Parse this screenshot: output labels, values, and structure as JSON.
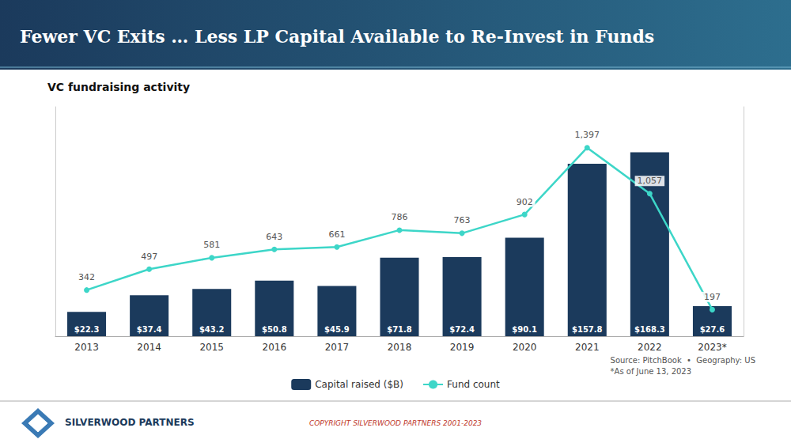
{
  "chart_data": {
    "type": "bar",
    "title": "Fewer VC Exits … Less LP Capital Available to Re-Invest in Funds",
    "subtitle": "VC fundraising activity",
    "categories": [
      "2013",
      "2014",
      "2015",
      "2016",
      "2017",
      "2018",
      "2019",
      "2020",
      "2021",
      "2022",
      "2023*"
    ],
    "series": [
      {
        "name": "Capital raised ($B)",
        "type": "bar",
        "color": "#1b3a5c",
        "values": [
          22.3,
          37.4,
          43.2,
          50.8,
          45.9,
          71.8,
          72.4,
          90.1,
          157.8,
          168.3,
          27.6
        ],
        "value_labels": [
          "$22.3",
          "$37.4",
          "$43.2",
          "$50.8",
          "$45.9",
          "$71.8",
          "$72.4",
          "$90.1",
          "$157.8",
          "$168.3",
          "$27.6"
        ]
      },
      {
        "name": "Fund count",
        "type": "line",
        "color": "#3dd6c8",
        "axis": "y2",
        "marker": "circle",
        "values": [
          342,
          497,
          581,
          643,
          661,
          786,
          763,
          902,
          1397,
          1057,
          197
        ],
        "value_labels": [
          "342",
          "497",
          "581",
          "643",
          "661",
          "786",
          "763",
          "902",
          "1,397",
          "1,057",
          "197"
        ]
      }
    ],
    "ylim": [
      0,
      210
    ],
    "y2lim": [
      0,
      1700
    ],
    "tick_labels": "x",
    "grid": false,
    "legend": "bottom",
    "data_labels": true,
    "annotations": [
      "Source: PitchBook  •  Geography: US\n*As of June 13, 2023",
      "SILVERWOOD PARTNERS",
      "COPYRIGHT SILVERWOOD PARTNERS 2001-2023"
    ]
  }
}
